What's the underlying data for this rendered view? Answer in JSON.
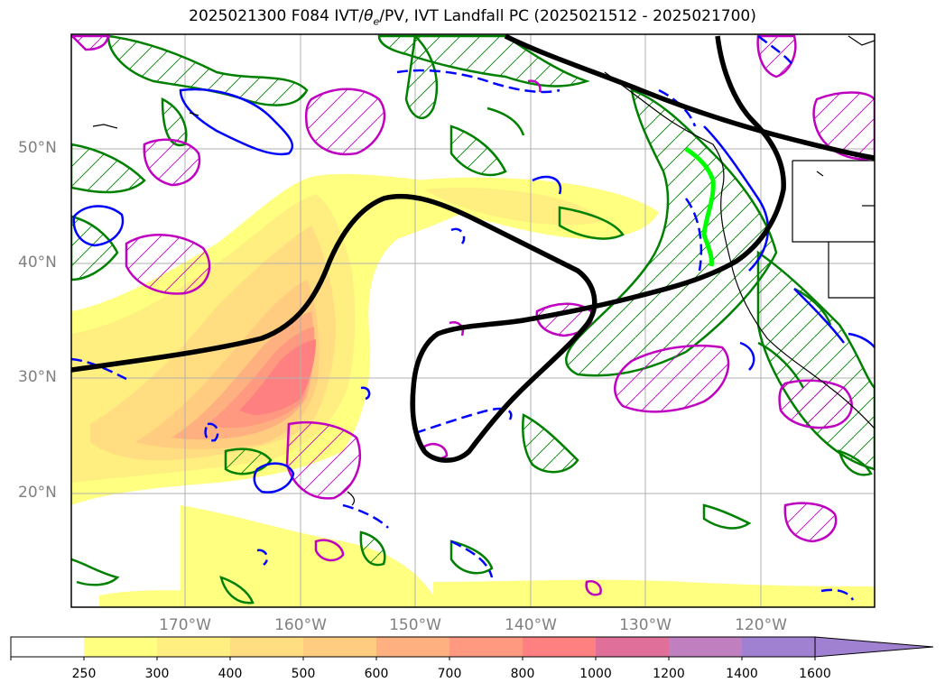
{
  "title": "2025021300 F084 IVT/θe/PV, IVT Landfall PC (2025021512 - 2025021700)",
  "title_parts": {
    "prefix": "2025021300 F084 IVT/",
    "theta": "θ",
    "theta_sub": "e",
    "suffix": "/PV, IVT Landfall PC (2025021512 - 2025021700)"
  },
  "latitude_labels": [
    "50°N",
    "40°N",
    "30°N",
    "20°N"
  ],
  "longitude_labels": [
    "170°W",
    "160°W",
    "150°W",
    "140°W",
    "130°W",
    "120°W"
  ],
  "colorbar": {
    "ticks": [
      "250",
      "300",
      "400",
      "500",
      "600",
      "700",
      "800",
      "1000",
      "1200",
      "1400",
      "1600"
    ],
    "colors": [
      "#ffffff",
      "#ffff80",
      "#ffee80",
      "#ffdd80",
      "#ffcc80",
      "#ffb080",
      "#ff9a80",
      "#ff8080",
      "#e0709a",
      "#c080c0",
      "#a080d0"
    ],
    "extend": "max"
  },
  "legend_colors": {
    "pc_contour": "#000000",
    "landfall_line": "#00ff00",
    "theta_e": "#0000ff",
    "pv_hatched": "#008000",
    "pv_magenta": "#c000c0"
  }
}
